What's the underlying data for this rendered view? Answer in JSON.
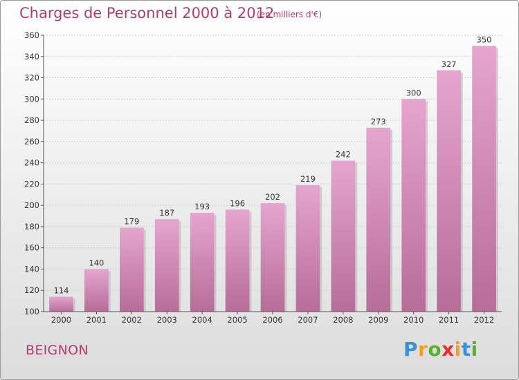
{
  "title": "Charges de Personnel 2000 à 2012",
  "subtitle": "(en milliers d'€)",
  "commune": "BEIGNON",
  "logo": {
    "text": "Proxiti",
    "letters": [
      {
        "ch": "P",
        "color": "#3b8fd6"
      },
      {
        "ch": "r",
        "color": "#f0a020"
      },
      {
        "ch": "o",
        "color": "#58b030"
      },
      {
        "ch": "x",
        "color": "#e03030"
      },
      {
        "ch": "i",
        "color": "#f0a020"
      },
      {
        "ch": "t",
        "color": "#3b8fd6"
      },
      {
        "ch": "i",
        "color": "#58b030"
      }
    ]
  },
  "colors": {
    "bar_top": "#e5a5ce",
    "bar_bottom": "#b66d98",
    "title": "#b03a72"
  },
  "chart_data": {
    "type": "bar",
    "title": "Charges de Personnel 2000 à 2012",
    "subtitle": "(en milliers d'€)",
    "xlabel": "",
    "ylabel": "",
    "categories": [
      "2000",
      "2001",
      "2002",
      "2003",
      "2004",
      "2005",
      "2006",
      "2007",
      "2008",
      "2009",
      "2010",
      "2011",
      "2012"
    ],
    "values": [
      114,
      140,
      179,
      187,
      193,
      196,
      202,
      219,
      242,
      273,
      300,
      327,
      350
    ],
    "ylim": [
      100,
      360
    ],
    "yticks": [
      100,
      120,
      140,
      160,
      180,
      200,
      220,
      240,
      260,
      280,
      300,
      320,
      340,
      360
    ],
    "grid": true,
    "legend": "none"
  }
}
